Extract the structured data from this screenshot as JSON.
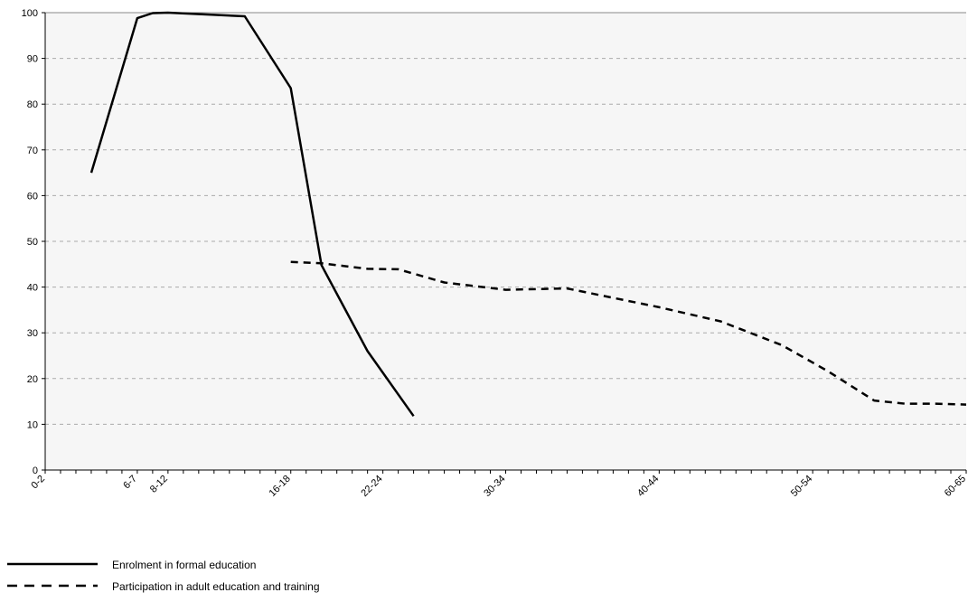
{
  "chart_data": {
    "type": "line",
    "title": "",
    "xlabel": "",
    "ylabel": "",
    "ylim": [
      0,
      100
    ],
    "yticks": [
      0,
      10,
      20,
      30,
      40,
      50,
      60,
      70,
      80,
      90,
      100
    ],
    "grid": true,
    "x_tick_labels": [
      {
        "x": 0,
        "label": "0-2"
      },
      {
        "x": 6,
        "label": "6-7"
      },
      {
        "x": 8,
        "label": "8-12"
      },
      {
        "x": 16,
        "label": "16-18"
      },
      {
        "x": 22,
        "label": "22-24"
      },
      {
        "x": 30,
        "label": "30-34"
      },
      {
        "x": 40,
        "label": "40-44"
      },
      {
        "x": 50,
        "label": "50-54"
      },
      {
        "x": 60,
        "label": "60-65"
      }
    ],
    "x_max": 60,
    "series": [
      {
        "name": "Enrolment in formal education",
        "style": "solid",
        "points": [
          [
            3,
            65
          ],
          [
            6,
            98.8
          ],
          [
            7,
            99.9
          ],
          [
            8,
            100
          ],
          [
            13,
            99.2
          ],
          [
            16,
            83.5
          ],
          [
            18,
            44.8
          ],
          [
            21,
            26
          ],
          [
            24,
            11.8
          ]
        ]
      },
      {
        "name": "Participation in adult education and training",
        "style": "dashed",
        "points": [
          [
            16,
            45.5
          ],
          [
            18,
            45.2
          ],
          [
            21,
            44
          ],
          [
            23,
            43.9
          ],
          [
            26,
            41
          ],
          [
            30,
            39.4
          ],
          [
            34,
            39.7
          ],
          [
            40,
            35.6
          ],
          [
            44,
            32.5
          ],
          [
            48,
            27.3
          ],
          [
            51,
            21.6
          ],
          [
            54,
            15.2
          ],
          [
            56,
            14.5
          ],
          [
            58,
            14.5
          ],
          [
            60,
            14.3
          ]
        ]
      }
    ],
    "legend_position": "bottom-left"
  }
}
